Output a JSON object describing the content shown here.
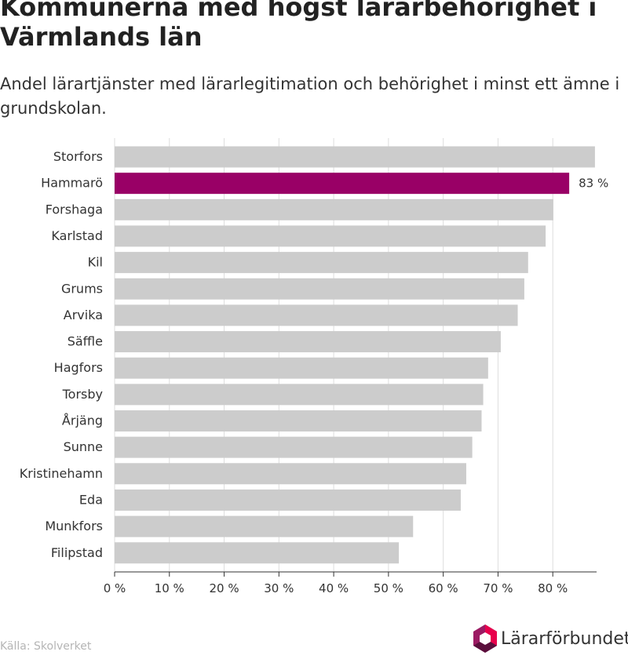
{
  "title": "Kommunerna med högst lärarbehörighet i Värmlands län",
  "subtitle": "Andel lärartjänster med lärarlegitimation och behörighet i minst ett ämne i grundskolan.",
  "source": "Källa: Skolverket",
  "brand": {
    "name": "Lärarförbundet",
    "icon": "hexagon-logo-icon"
  },
  "colors": {
    "bar": "#cccccc",
    "highlight": "#990066",
    "grid": "#dddddd",
    "logo_a": "#9c1a63",
    "logo_b": "#e8004c",
    "logo_c": "#5a0f3c"
  },
  "chart_data": {
    "type": "bar",
    "orientation": "horizontal",
    "categories": [
      "Storfors",
      "Hammarö",
      "Forshaga",
      "Karlstad",
      "Kil",
      "Grums",
      "Arvika",
      "Säffle",
      "Hagfors",
      "Torsby",
      "Årjäng",
      "Sunne",
      "Kristinehamn",
      "Eda",
      "Munkfors",
      "Filipstad"
    ],
    "values": [
      87.7,
      83,
      80.1,
      78.7,
      75.5,
      74.8,
      73.6,
      70.5,
      68.2,
      67.3,
      67.0,
      65.3,
      64.2,
      63.2,
      54.5,
      51.9
    ],
    "highlight_index": 1,
    "data_labels": [
      {
        "index": 1,
        "text": "83 %"
      }
    ],
    "xlim": [
      0,
      88
    ],
    "x_ticks": [
      0,
      10,
      20,
      30,
      40,
      50,
      60,
      70,
      80
    ],
    "x_tick_labels": [
      "0 %",
      "10 %",
      "20 %",
      "30 %",
      "40 %",
      "50 %",
      "60 %",
      "70 %",
      "80 %"
    ],
    "grid": true
  }
}
